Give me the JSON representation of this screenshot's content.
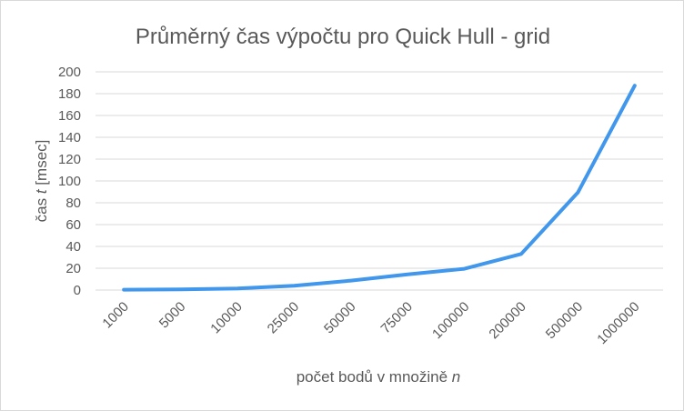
{
  "chart_data": {
    "type": "line",
    "title": "Průměrný čas výpočtu pro Quick Hull - grid",
    "xlabel": "počet bodů v množině",
    "xlabel_var": "n",
    "ylabel": "čas",
    "ylabel_var": "t",
    "ylabel_unit": "[msec]",
    "categories": [
      "1000",
      "5000",
      "10000",
      "25000",
      "50000",
      "75000",
      "100000",
      "200000",
      "500000",
      "1000000"
    ],
    "series": [
      {
        "values": [
          0.3,
          0.7,
          1.4,
          3.9,
          8.7,
          14.4,
          19.5,
          33.1,
          89.5,
          187.3
        ]
      }
    ],
    "ylim": [
      0,
      200
    ],
    "yticks": [
      0,
      20,
      40,
      60,
      80,
      100,
      120,
      140,
      160,
      180,
      200
    ],
    "grid": true,
    "line_color": "#4097ec",
    "grid_color": "#d9d9d9"
  }
}
